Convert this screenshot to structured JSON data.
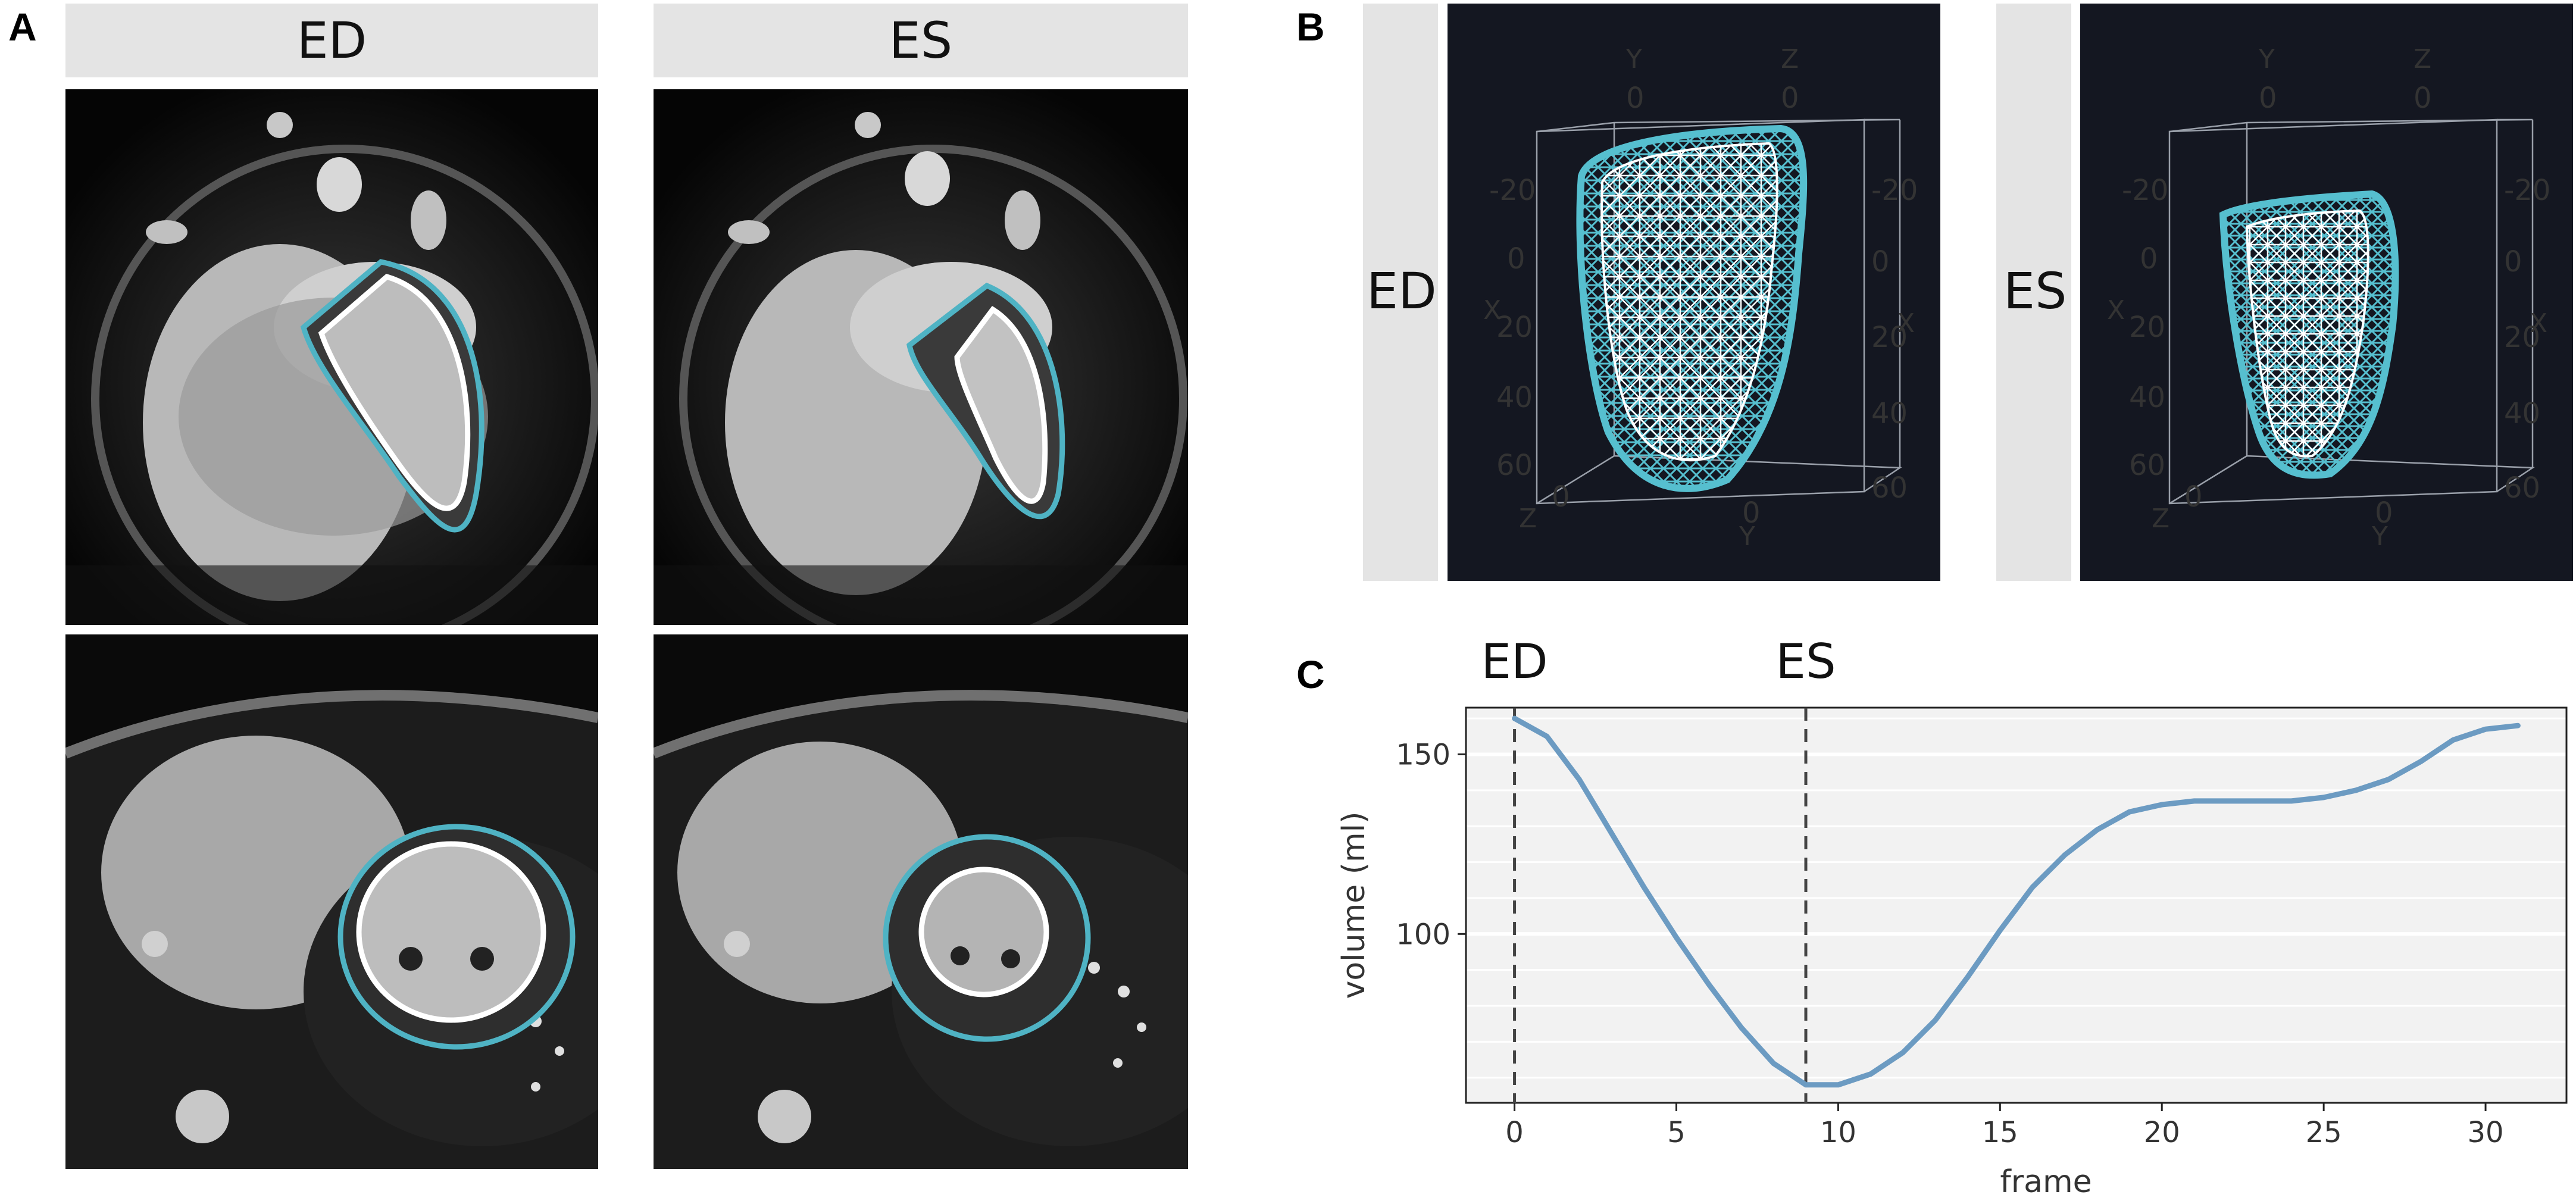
{
  "panels": {
    "a_letter": "A",
    "b_letter": "B",
    "c_letter": "C"
  },
  "panel_a": {
    "col_headers": [
      "ED",
      "ES"
    ]
  },
  "panel_b": {
    "row_labels": [
      "ED",
      "ES"
    ],
    "axes": {
      "top_axis_labels": [
        "Y",
        "Z"
      ],
      "top_axis_ticks": [
        "0",
        "0"
      ],
      "left_axis_label": "X",
      "right_axis_label": "X",
      "left_ticks": [
        "-20",
        "0",
        "20",
        "40",
        "60"
      ],
      "right_ticks": [
        "-20",
        "0",
        "20",
        "40",
        "60"
      ],
      "bottom_labels": [
        "Z",
        "Y"
      ],
      "bottom_ticks": [
        "0",
        "0"
      ]
    }
  },
  "colors": {
    "contour_epi": "#4fb3c4",
    "contour_endo": "#ffffff",
    "mesh_bg": "#141721",
    "mesh_line": "#56bfcf",
    "curve": "#6c9bc2",
    "plot_bg": "#f2f2f2"
  },
  "chart_data": {
    "type": "line",
    "xlabel": "frame",
    "ylabel": "volume (ml)",
    "xlim": [
      -1.5,
      32.5
    ],
    "ylim": [
      53,
      163
    ],
    "xticks": [
      0,
      5,
      10,
      15,
      20,
      25,
      30
    ],
    "yticks": [
      100,
      150
    ],
    "grid": "horizontal",
    "markers": [
      {
        "label": "ED",
        "x": 0
      },
      {
        "label": "ES",
        "x": 9
      }
    ],
    "series": [
      {
        "x": [
          0,
          1,
          2,
          3,
          4,
          5,
          6,
          7,
          8,
          9,
          10,
          11,
          12,
          13,
          14,
          15,
          16,
          17,
          18,
          19,
          20,
          21,
          22,
          23,
          24,
          25,
          26,
          27,
          28,
          29,
          30,
          31
        ],
        "values": [
          160,
          155,
          143,
          128,
          113,
          99,
          86,
          74,
          64,
          58,
          58,
          61,
          67,
          76,
          88,
          101,
          113,
          122,
          129,
          134,
          136,
          137,
          137,
          137,
          137,
          138,
          140,
          143,
          148,
          154,
          157,
          158
        ]
      }
    ]
  }
}
